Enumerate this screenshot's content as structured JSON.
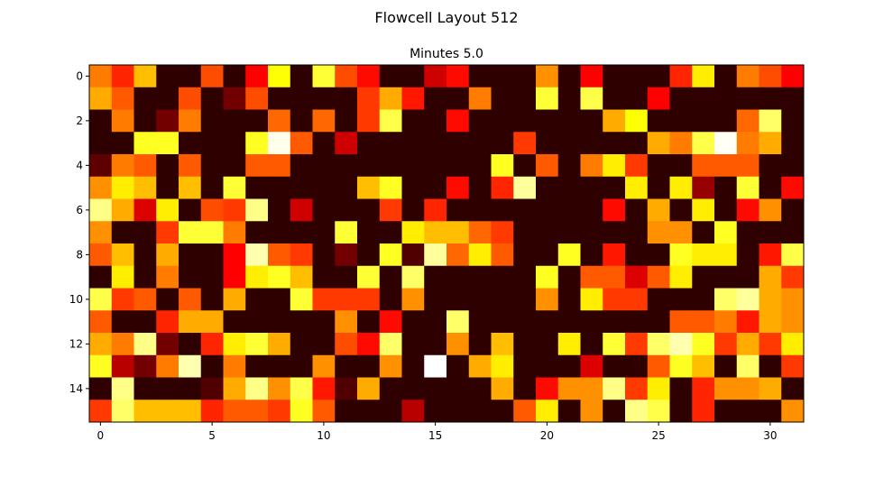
{
  "chart_data": {
    "type": "heatmap",
    "title": "Flowcell Layout 512",
    "subtitle": "Minutes 5.0",
    "xlabel": "",
    "ylabel": "",
    "colormap": "hot",
    "vmin": 0,
    "vmax": 1,
    "n_rows": 16,
    "n_cols": 32,
    "xlim": [
      -0.5,
      31.5
    ],
    "ylim": [
      15.5,
      -0.5
    ],
    "x_ticks": [
      0,
      5,
      10,
      15,
      20,
      25,
      30
    ],
    "y_ticks": [
      0,
      2,
      4,
      6,
      8,
      10,
      12,
      14
    ],
    "grid": false,
    "values": [
      [
        0.55,
        0.42,
        0.65,
        0.05,
        0.05,
        0.48,
        0.05,
        0.35,
        0.75,
        0.05,
        0.8,
        0.48,
        0.38,
        0.05,
        0.05,
        0.28,
        0.38,
        0.05,
        0.05,
        0.05,
        0.58,
        0.05,
        0.35,
        0.05,
        0.05,
        0.05,
        0.42,
        0.72,
        0.05,
        0.55,
        0.48,
        0.35
      ],
      [
        0.62,
        0.5,
        0.05,
        0.05,
        0.48,
        0.05,
        0.15,
        0.48,
        0.05,
        0.05,
        0.05,
        0.05,
        0.45,
        0.62,
        0.4,
        0.05,
        0.05,
        0.55,
        0.05,
        0.05,
        0.8,
        0.05,
        0.82,
        0.05,
        0.05,
        0.35,
        0.05,
        0.05,
        0.05,
        0.05,
        0.05,
        0.05
      ],
      [
        0.05,
        0.55,
        0.05,
        0.15,
        0.55,
        0.05,
        0.05,
        0.05,
        0.52,
        0.05,
        0.52,
        0.05,
        0.45,
        0.82,
        0.05,
        0.05,
        0.38,
        0.05,
        0.05,
        0.05,
        0.05,
        0.05,
        0.05,
        0.62,
        0.75,
        0.05,
        0.05,
        0.05,
        0.05,
        0.52,
        0.85,
        0.05
      ],
      [
        0.05,
        0.05,
        0.78,
        0.78,
        0.05,
        0.05,
        0.05,
        0.78,
        0.98,
        0.5,
        0.05,
        0.28,
        0.05,
        0.05,
        0.05,
        0.05,
        0.05,
        0.05,
        0.05,
        0.45,
        0.05,
        0.05,
        0.05,
        0.05,
        0.05,
        0.62,
        0.55,
        0.82,
        0.99,
        0.55,
        0.62,
        0.05
      ],
      [
        0.12,
        0.55,
        0.5,
        0.05,
        0.5,
        0.05,
        0.05,
        0.5,
        0.5,
        0.05,
        0.05,
        0.05,
        0.05,
        0.05,
        0.05,
        0.05,
        0.05,
        0.05,
        0.78,
        0.05,
        0.5,
        0.05,
        0.55,
        0.72,
        0.45,
        0.05,
        0.05,
        0.5,
        0.5,
        0.5,
        0.05,
        0.05
      ],
      [
        0.58,
        0.72,
        0.65,
        0.05,
        0.65,
        0.05,
        0.8,
        0.05,
        0.05,
        0.05,
        0.05,
        0.05,
        0.65,
        0.78,
        0.05,
        0.05,
        0.38,
        0.05,
        0.42,
        0.9,
        0.05,
        0.05,
        0.05,
        0.05,
        0.72,
        0.05,
        0.72,
        0.2,
        0.05,
        0.8,
        0.05,
        0.38
      ],
      [
        0.88,
        0.62,
        0.3,
        0.72,
        0.05,
        0.48,
        0.45,
        0.88,
        0.05,
        0.28,
        0.05,
        0.05,
        0.05,
        0.45,
        0.05,
        0.42,
        0.05,
        0.05,
        0.05,
        0.05,
        0.05,
        0.05,
        0.05,
        0.38,
        0.05,
        0.62,
        0.05,
        0.72,
        0.05,
        0.38,
        0.58,
        0.05
      ],
      [
        0.58,
        0.05,
        0.05,
        0.45,
        0.8,
        0.8,
        0.55,
        0.05,
        0.05,
        0.05,
        0.05,
        0.8,
        0.05,
        0.05,
        0.72,
        0.65,
        0.65,
        0.52,
        0.45,
        0.05,
        0.05,
        0.05,
        0.05,
        0.05,
        0.05,
        0.58,
        0.58,
        0.05,
        0.78,
        0.05,
        0.05,
        0.05
      ],
      [
        0.5,
        0.65,
        0.05,
        0.62,
        0.05,
        0.05,
        0.35,
        0.92,
        0.5,
        0.45,
        0.05,
        0.15,
        0.05,
        0.78,
        0.1,
        0.9,
        0.52,
        0.72,
        0.5,
        0.05,
        0.05,
        0.78,
        0.05,
        0.4,
        0.05,
        0.05,
        0.78,
        0.72,
        0.72,
        0.05,
        0.4,
        0.82
      ],
      [
        0.05,
        0.72,
        0.05,
        0.55,
        0.05,
        0.05,
        0.35,
        0.72,
        0.78,
        0.65,
        0.05,
        0.05,
        0.8,
        0.05,
        0.85,
        0.05,
        0.05,
        0.05,
        0.05,
        0.05,
        0.78,
        0.05,
        0.5,
        0.5,
        0.3,
        0.5,
        0.72,
        0.05,
        0.05,
        0.05,
        0.62,
        0.45
      ],
      [
        0.82,
        0.45,
        0.5,
        0.05,
        0.5,
        0.05,
        0.62,
        0.05,
        0.05,
        0.8,
        0.45,
        0.45,
        0.45,
        0.05,
        0.58,
        0.05,
        0.05,
        0.05,
        0.05,
        0.05,
        0.58,
        0.05,
        0.72,
        0.45,
        0.45,
        0.05,
        0.05,
        0.05,
        0.85,
        0.9,
        0.62,
        0.58
      ],
      [
        0.5,
        0.05,
        0.05,
        0.42,
        0.62,
        0.62,
        0.05,
        0.05,
        0.05,
        0.05,
        0.05,
        0.58,
        0.05,
        0.38,
        0.05,
        0.05,
        0.85,
        0.05,
        0.05,
        0.05,
        0.05,
        0.05,
        0.05,
        0.05,
        0.05,
        0.05,
        0.5,
        0.5,
        0.55,
        0.4,
        0.62,
        0.58
      ],
      [
        0.62,
        0.55,
        0.88,
        0.15,
        0.05,
        0.42,
        0.72,
        0.8,
        0.62,
        0.05,
        0.05,
        0.48,
        0.38,
        0.85,
        0.05,
        0.05,
        0.58,
        0.05,
        0.65,
        0.05,
        0.05,
        0.72,
        0.05,
        0.8,
        0.45,
        0.85,
        0.92,
        0.78,
        0.45,
        0.62,
        0.45,
        0.72
      ],
      [
        0.78,
        0.25,
        0.15,
        0.55,
        0.92,
        0.05,
        0.55,
        0.05,
        0.05,
        0.05,
        0.58,
        0.05,
        0.05,
        0.58,
        0.05,
        1.0,
        0.05,
        0.62,
        0.72,
        0.05,
        0.05,
        0.05,
        0.3,
        0.05,
        0.05,
        0.5,
        0.78,
        0.65,
        0.05,
        0.85,
        0.05,
        0.45
      ],
      [
        0.05,
        0.88,
        0.05,
        0.05,
        0.05,
        0.1,
        0.62,
        0.88,
        0.58,
        0.82,
        0.4,
        0.1,
        0.62,
        0.05,
        0.05,
        0.05,
        0.05,
        0.05,
        0.62,
        0.05,
        0.38,
        0.58,
        0.58,
        0.88,
        0.45,
        0.72,
        0.05,
        0.42,
        0.58,
        0.58,
        0.62,
        0.05
      ],
      [
        0.45,
        0.85,
        0.65,
        0.65,
        0.65,
        0.42,
        0.5,
        0.5,
        0.45,
        0.78,
        0.5,
        0.05,
        0.05,
        0.05,
        0.25,
        0.05,
        0.05,
        0.05,
        0.05,
        0.5,
        0.72,
        0.05,
        0.58,
        0.05,
        0.88,
        0.82,
        0.05,
        0.42,
        0.05,
        0.05,
        0.05,
        0.58
      ]
    ]
  }
}
